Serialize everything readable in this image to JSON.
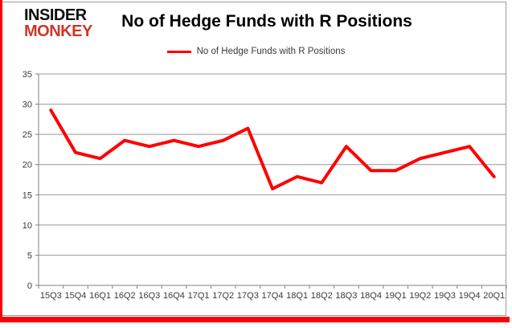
{
  "header": {
    "logo_line1": "INSIDER",
    "logo_line2": "MONKEY",
    "title": "No of Hedge Funds with R Positions",
    "legend_label": "No of Hedge Funds with R Positions"
  },
  "colors": {
    "series_red": "#fe0000",
    "logo_red": "#cd372a",
    "accent_red": "#fb0007",
    "frame_gray": "#9a9a9a",
    "gridline_gray": "#999999",
    "axis_gray": "#808080",
    "text_dark": "#3a3a3a"
  },
  "chart_data": {
    "type": "line",
    "title": "No of Hedge Funds with R Positions",
    "categories": [
      "15Q3",
      "15Q4",
      "16Q1",
      "16Q2",
      "16Q3",
      "16Q4",
      "17Q1",
      "17Q2",
      "17Q3",
      "17Q4",
      "18Q1",
      "18Q2",
      "18Q3",
      "18Q4",
      "19Q1",
      "19Q2",
      "19Q3",
      "19Q4",
      "20Q1"
    ],
    "series": [
      {
        "name": "No of Hedge Funds with R Positions",
        "color": "#fe0000",
        "values": [
          29,
          22,
          21,
          24,
          23,
          24,
          23,
          24,
          26,
          16,
          18,
          17,
          23,
          19,
          19,
          21,
          22,
          23,
          18
        ]
      }
    ],
    "xlabel": "",
    "ylabel": "",
    "ylim": [
      0,
      35
    ],
    "yticks": [
      0,
      5,
      10,
      15,
      20,
      25,
      30,
      35
    ],
    "grid": true,
    "legend_position": "top-center"
  }
}
